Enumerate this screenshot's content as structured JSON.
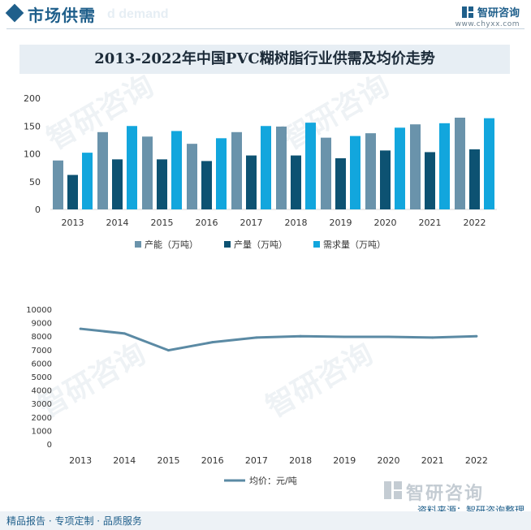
{
  "header": {
    "section_title": "市场供需",
    "ghost_subtitle": "d demand",
    "brand_name": "智研咨询",
    "brand_url": "www.chyxx.com"
  },
  "watermark": {
    "text": "智研咨询"
  },
  "chart_data": [
    {
      "type": "bar",
      "title": "2013-2022年中国PVC糊树脂行业供需及均价走势",
      "categories": [
        "2013",
        "2014",
        "2015",
        "2016",
        "2017",
        "2018",
        "2019",
        "2020",
        "2021",
        "2022"
      ],
      "series": [
        {
          "name": "产能（万吨）",
          "color": "#6a93ab",
          "values": [
            88,
            139,
            131,
            118,
            139,
            149,
            129,
            137,
            153,
            165
          ]
        },
        {
          "name": "产量（万吨）",
          "color": "#0d5272",
          "values": [
            62,
            90,
            90,
            87,
            97,
            97,
            92,
            106,
            103,
            108
          ]
        },
        {
          "name": "需求量（万吨）",
          "color": "#12a6dd",
          "values": [
            102,
            150,
            141,
            128,
            150,
            156,
            132,
            147,
            155,
            164
          ]
        }
      ],
      "ylim": [
        0,
        200
      ],
      "yticks": [
        0,
        50,
        100,
        150,
        200
      ],
      "legend_position": "bottom"
    },
    {
      "type": "line",
      "categories": [
        "2013",
        "2014",
        "2015",
        "2016",
        "2017",
        "2018",
        "2019",
        "2020",
        "2021",
        "2022"
      ],
      "series": [
        {
          "name": "均价：元/吨",
          "color": "#5b8aa4",
          "values": [
            8550,
            8200,
            6950,
            7550,
            7900,
            8000,
            7950,
            7950,
            7900,
            8000
          ]
        }
      ],
      "ylim": [
        0,
        10000
      ],
      "yticks": [
        0,
        1000,
        2000,
        3000,
        4000,
        5000,
        6000,
        7000,
        8000,
        9000,
        10000
      ],
      "legend_position": "bottom"
    }
  ],
  "footer": {
    "left": "精品报告 · 专项定制 · 品质服务",
    "source": "资料来源：智研咨询整理",
    "logo_text": "智研咨询"
  }
}
